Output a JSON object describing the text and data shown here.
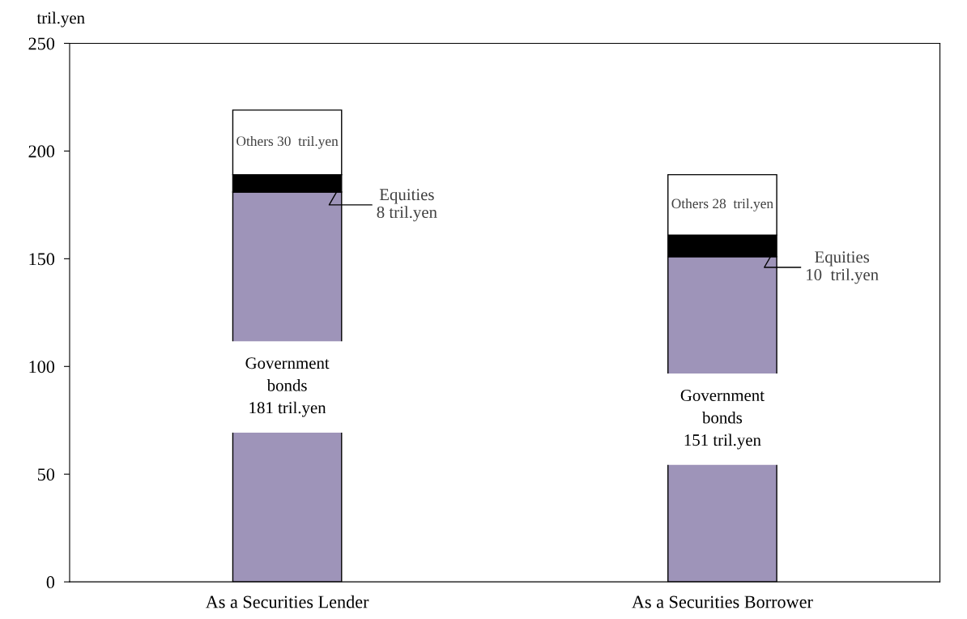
{
  "chart_data": {
    "type": "bar",
    "stacked": true,
    "ylabel": "tril.yen",
    "categories": [
      "As a Securities Lender",
      "As a Securities Borrower"
    ],
    "ylim": [
      0,
      250
    ],
    "yticks": [
      0,
      50,
      100,
      150,
      200,
      250
    ],
    "grid": false,
    "series": [
      {
        "color": "#9e94b9",
        "values": [
          181,
          151
        ],
        "value_labels": [
          "Government\nbonds\n181 tril.yen",
          "Government\nbonds\n151 tril.yen"
        ]
      },
      {
        "color": "#000000",
        "values": [
          8,
          10
        ],
        "value_labels": [
          "Equities\n8 tril.yen",
          "Equities\n10  tril.yen"
        ]
      },
      {
        "color": "#ffffff",
        "values": [
          30,
          28
        ],
        "value_labels": [
          "Others 30  tril.yen",
          "Others 28  tril.yen"
        ]
      }
    ]
  }
}
